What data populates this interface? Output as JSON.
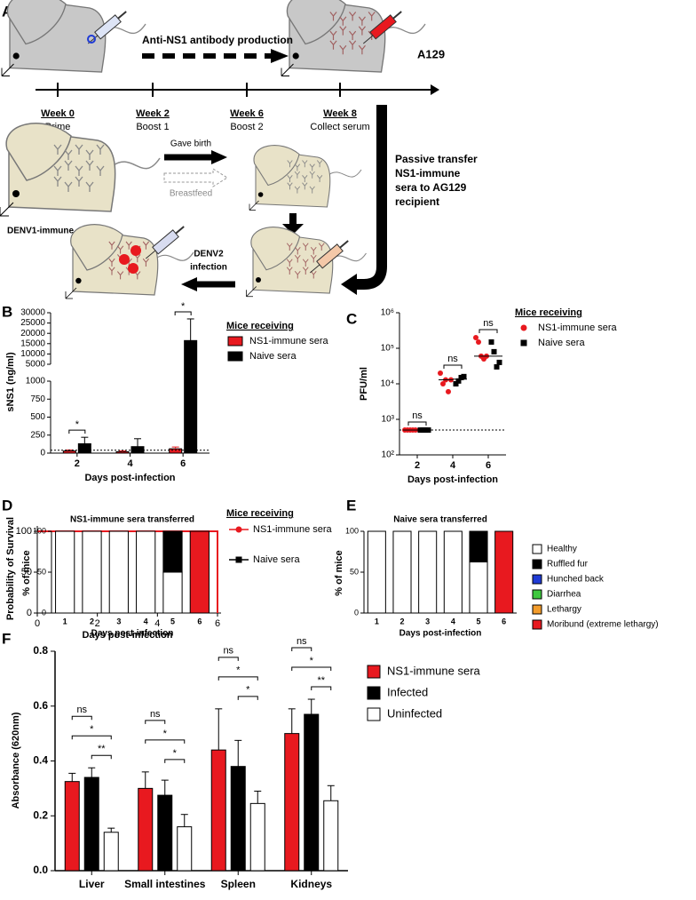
{
  "panel_labels": [
    "A",
    "B",
    "C",
    "D",
    "E",
    "F"
  ],
  "diagram": {
    "top_arrow": "Anti-NS1 antibody production",
    "strain": "A129",
    "timeline": [
      {
        "week": "Week 0",
        "stage": "Prime"
      },
      {
        "week": "Week 2",
        "stage": "Boost 1"
      },
      {
        "week": "Week 6",
        "stage": "Boost 2"
      },
      {
        "week": "Week 8",
        "stage": "Collect serum"
      }
    ],
    "birth": "Gave birth",
    "breastfeed": "Breastfeed",
    "mother": "DENV1-immune",
    "transfer": [
      "Passive transfer",
      "NS1-immune",
      "sera to AG129",
      "recipient"
    ],
    "infection": [
      "DENV2",
      "infection"
    ]
  },
  "chart_data": [
    {
      "type": "broken_bar",
      "x_label": "Days post-infection",
      "y_label": "sNS1 (ng/ml)",
      "legend_title": "Mice receiving",
      "categories": [
        "2",
        "4",
        "6"
      ],
      "series": [
        {
          "name": "NS1-immune sera",
          "color": "#e8191f",
          "values": [
            30,
            20,
            60
          ],
          "errors": [
            15,
            10,
            25
          ]
        },
        {
          "name": "Naive sera",
          "color": "#000000",
          "values": [
            130,
            90,
            16500
          ],
          "errors": [
            90,
            110,
            10500
          ]
        }
      ],
      "ylim": [
        0,
        30000
      ],
      "ybreak": [
        1000,
        5000
      ],
      "yticks": [
        0,
        250,
        500,
        750,
        1000,
        5000,
        10000,
        15000,
        20000,
        25000,
        30000
      ],
      "limit_of_detection": 40,
      "significance": [
        {
          "category": 0,
          "label": "*"
        },
        {
          "category": 2,
          "label": "*"
        }
      ]
    },
    {
      "type": "dot_plot",
      "x_label": "Days post-infection",
      "y_label": "PFU/ml",
      "legend_title": "Mice receiving",
      "log_scale": true,
      "categories": [
        "2",
        "4",
        "6"
      ],
      "series": [
        {
          "name": "NS1-immune sera",
          "color": "#e8191f",
          "marker": "circle",
          "values": [
            [
              500,
              500,
              500,
              500,
              500
            ],
            [
              20000,
              10000,
              13000,
              6000,
              13000
            ],
            [
              200000,
              150000,
              60000,
              50000,
              60000
            ]
          ],
          "medians": [
            500,
            13000,
            60000
          ]
        },
        {
          "name": "Naive sera",
          "color": "#000000",
          "marker": "square",
          "values": [
            [
              500,
              500,
              500,
              500
            ],
            [
              10000,
              12000,
              15000,
              16000
            ],
            [
              150000,
              80000,
              30000,
              40000
            ]
          ],
          "medians": [
            500,
            13500,
            60000
          ]
        }
      ],
      "ylim": [
        100,
        1000000
      ],
      "yticks": [
        {
          "value": 100,
          "label": "10²"
        },
        {
          "value": 1000,
          "label": "10³"
        },
        {
          "value": 10000,
          "label": "10⁴"
        },
        {
          "value": 100000,
          "label": "10⁵"
        },
        {
          "value": 1000000,
          "label": "10⁶"
        }
      ],
      "limit_of_detection": 500,
      "significance": [
        {
          "category": 0,
          "label": "ns"
        },
        {
          "category": 1,
          "label": "ns"
        },
        {
          "category": 2,
          "label": "ns"
        }
      ]
    },
    {
      "type": "line",
      "x_label": "Days post-infection",
      "y_label": "Probability of Survival",
      "legend_title": "Mice receiving",
      "series": [
        {
          "name": "Naive sera",
          "color": "#000000",
          "marker": "square",
          "x": [
            0,
            6,
            6
          ],
          "values": [
            100,
            100,
            0
          ]
        },
        {
          "name": "NS1-immune sera",
          "color": "#e8191f",
          "marker": "circle",
          "x": [
            0,
            6,
            6
          ],
          "values": [
            100,
            100,
            0
          ]
        }
      ],
      "xlim": [
        0,
        6
      ],
      "xticks": [
        0,
        2,
        4,
        6
      ],
      "ylim": [
        0,
        100
      ],
      "yticks": [
        0,
        50,
        100
      ]
    },
    {
      "type": "stacked_bar",
      "title": "NS1-immune sera transferred",
      "x_label": "Days post-infection",
      "y_label": "% of mice",
      "legend": true,
      "categories": [
        "1",
        "2",
        "3",
        "4",
        "5",
        "6"
      ],
      "series": [
        {
          "name": "Healthy",
          "color": "#ffffff",
          "values": [
            100,
            100,
            100,
            100,
            50,
            0
          ]
        },
        {
          "name": "Ruffled fur",
          "color": "#000000",
          "values": [
            0,
            0,
            0,
            0,
            50,
            0
          ]
        },
        {
          "name": "Hunched back",
          "color": "#1f3bd6",
          "values": [
            0,
            0,
            0,
            0,
            0,
            0
          ]
        },
        {
          "name": "Diarrhea",
          "color": "#3ec83e",
          "values": [
            0,
            0,
            0,
            0,
            0,
            0
          ]
        },
        {
          "name": "Lethargy",
          "color": "#f39c2b",
          "values": [
            0,
            0,
            0,
            0,
            0,
            0
          ]
        },
        {
          "name": "Moribund (extreme lethargy)",
          "color": "#e8191f",
          "values": [
            0,
            0,
            0,
            0,
            0,
            100
          ]
        }
      ],
      "ylim": [
        0,
        100
      ],
      "yticks": [
        0,
        50,
        100
      ]
    },
    {
      "type": "stacked_bar",
      "title": "Naive sera transferred",
      "x_label": "Days post-infection",
      "y_label": "% of mice",
      "legend": false,
      "categories": [
        "1",
        "2",
        "3",
        "4",
        "5",
        "6"
      ],
      "series": [
        {
          "color": "#ffffff",
          "values": [
            100,
            100,
            100,
            100,
            62.5,
            0
          ]
        },
        {
          "color": "#000000",
          "values": [
            0,
            0,
            0,
            0,
            37.5,
            0
          ]
        },
        {
          "color": "#1f3bd6",
          "values": [
            0,
            0,
            0,
            0,
            0,
            0
          ]
        },
        {
          "color": "#3ec83e",
          "values": [
            0,
            0,
            0,
            0,
            0,
            0
          ]
        },
        {
          "color": "#f39c2b",
          "values": [
            0,
            0,
            0,
            0,
            0,
            0
          ]
        },
        {
          "color": "#e8191f",
          "values": [
            0,
            0,
            0,
            0,
            0,
            100
          ]
        }
      ],
      "ylim": [
        0,
        100
      ],
      "yticks": [
        0,
        50,
        100
      ]
    },
    {
      "type": "grouped_bar",
      "y_label": "Absorbance (620nm)",
      "categories": [
        "Liver",
        "Small intestines",
        "Spleen",
        "Kidneys"
      ],
      "series": [
        {
          "name": "NS1-immune sera",
          "color": "#e8191f",
          "values": [
            0.325,
            0.3,
            0.44,
            0.5
          ],
          "errors": [
            0.03,
            0.06,
            0.15,
            0.09
          ]
        },
        {
          "name": "Infected",
          "color": "#000000",
          "values": [
            0.34,
            0.275,
            0.38,
            0.57
          ],
          "errors": [
            0.035,
            0.055,
            0.095,
            0.055
          ]
        },
        {
          "name": "Uninfected",
          "color": "#ffffff",
          "values": [
            0.14,
            0.16,
            0.245,
            0.255
          ],
          "errors": [
            0.015,
            0.045,
            0.045,
            0.055
          ]
        }
      ],
      "ylim": [
        0,
        0.8
      ],
      "yticks": [
        {
          "value": 0,
          "label": "0.0"
        },
        0.2,
        0.4,
        0.6,
        0.8
      ],
      "significance": [
        {
          "category": 0,
          "pair": [
            0,
            1
          ],
          "label": "ns"
        },
        {
          "category": 0,
          "pair": [
            0,
            2
          ],
          "label": "*"
        },
        {
          "category": 0,
          "pair": [
            1,
            2
          ],
          "label": "**"
        },
        {
          "category": 1,
          "pair": [
            0,
            1
          ],
          "label": "ns"
        },
        {
          "category": 1,
          "pair": [
            0,
            2
          ],
          "label": "*"
        },
        {
          "category": 1,
          "pair": [
            1,
            2
          ],
          "label": "*"
        },
        {
          "category": 2,
          "pair": [
            0,
            1
          ],
          "label": "ns"
        },
        {
          "category": 2,
          "pair": [
            0,
            2
          ],
          "label": "*"
        },
        {
          "category": 2,
          "pair": [
            1,
            2
          ],
          "label": "*"
        },
        {
          "category": 3,
          "pair": [
            0,
            1
          ],
          "label": "ns"
        },
        {
          "category": 3,
          "pair": [
            0,
            2
          ],
          "label": "*"
        },
        {
          "category": 3,
          "pair": [
            1,
            2
          ],
          "label": "**"
        }
      ]
    }
  ]
}
